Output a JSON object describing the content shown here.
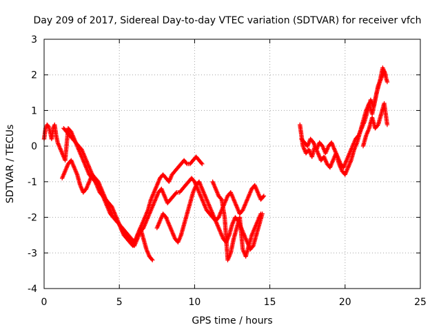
{
  "chart_data": {
    "type": "scatter",
    "title": "Day 209 of 2017, Sidereal Day-to-day VTEC variation (SDTVAR) for receiver vfch",
    "xlabel": "GPS time / hours",
    "ylabel": "SDTVAR / TECUs",
    "xlim": [
      0,
      25
    ],
    "ylim": [
      -4,
      3
    ],
    "xticks": [
      0,
      5,
      10,
      15,
      20,
      25
    ],
    "yticks": [
      -4,
      -3,
      -2,
      -1,
      0,
      1,
      2,
      3
    ],
    "grid": true,
    "grid_style": "dotted",
    "marker": "+",
    "colors": {
      "series": "#ff0000",
      "axes": "#000000",
      "grid": "#a0a0a0"
    },
    "series": [
      {
        "x": [
          0.0,
          0.1,
          0.2,
          0.3,
          0.4,
          0.5,
          0.6,
          0.7,
          0.8,
          0.9,
          1.0,
          1.2,
          1.4,
          1.6,
          1.8,
          2.0,
          2.2,
          2.4,
          2.6,
          2.8,
          3.0,
          3.2,
          3.4,
          3.6,
          3.8,
          4.0,
          4.2,
          4.4,
          4.6,
          4.8,
          5.0,
          5.2,
          5.4,
          5.6,
          5.8,
          6.0,
          6.2,
          6.4,
          6.6,
          6.8,
          7.0,
          7.2
        ],
        "y": [
          0.2,
          0.5,
          0.6,
          0.55,
          0.4,
          0.2,
          0.5,
          0.6,
          0.3,
          0.1,
          0.0,
          -0.2,
          -0.4,
          0.5,
          0.4,
          0.2,
          0.0,
          -0.2,
          -0.4,
          -0.6,
          -0.8,
          -0.9,
          -1.0,
          -1.1,
          -1.3,
          -1.5,
          -1.7,
          -1.9,
          -2.0,
          -2.1,
          -2.2,
          -2.3,
          -2.4,
          -2.5,
          -2.6,
          -2.7,
          -2.5,
          -2.3,
          -2.6,
          -2.9,
          -3.1,
          -3.2
        ]
      },
      {
        "x": [
          1.3,
          1.5,
          1.7,
          1.9,
          2.1,
          2.3,
          2.5,
          2.7,
          2.9,
          3.1,
          3.3,
          3.5,
          3.7,
          3.9,
          4.1,
          4.3,
          4.5,
          4.7,
          4.9,
          5.1,
          5.3,
          5.5,
          5.7,
          5.9,
          6.1,
          6.3,
          6.5,
          6.7,
          6.9,
          7.1,
          7.3,
          7.5,
          7.7,
          7.9,
          8.1,
          8.3,
          8.5,
          8.7,
          8.9,
          9.1,
          9.3,
          9.5,
          9.7,
          9.9,
          10.1,
          10.3,
          10.5
        ],
        "y": [
          0.5,
          0.4,
          0.3,
          0.2,
          0.1,
          0.0,
          -0.1,
          -0.3,
          -0.5,
          -0.7,
          -0.9,
          -1.1,
          -1.3,
          -1.4,
          -1.5,
          -1.6,
          -1.7,
          -1.9,
          -2.1,
          -2.3,
          -2.5,
          -2.6,
          -2.7,
          -2.8,
          -2.6,
          -2.4,
          -2.2,
          -2.0,
          -1.8,
          -1.5,
          -1.3,
          -1.1,
          -0.9,
          -0.8,
          -0.9,
          -1.0,
          -0.8,
          -0.7,
          -0.6,
          -0.5,
          -0.4,
          -0.5,
          -0.5,
          -0.4,
          -0.3,
          -0.4,
          -0.5
        ]
      },
      {
        "x": [
          1.2,
          1.4,
          1.6,
          1.8,
          2.0,
          2.2,
          2.4,
          2.6,
          2.8,
          3.0,
          3.2,
          3.4,
          3.6,
          3.8,
          4.0,
          4.2,
          4.4,
          4.6,
          4.8,
          5.0,
          5.2,
          5.4,
          5.6,
          5.8,
          6.0,
          6.2,
          6.4,
          6.6,
          6.8,
          7.0,
          7.2,
          7.4,
          7.6,
          7.8,
          8.0,
          8.2,
          8.4,
          8.6,
          8.8,
          9.0,
          9.2,
          9.4,
          9.6,
          9.8,
          10.0,
          10.2,
          10.4,
          10.6,
          10.8,
          11.0,
          11.2,
          11.4,
          11.6,
          11.8,
          12.0,
          12.2,
          12.4,
          12.6,
          12.8,
          13.0,
          13.2,
          13.4,
          13.6,
          13.8,
          14.0,
          14.2,
          14.4,
          14.6
        ],
        "y": [
          -0.9,
          -0.7,
          -0.5,
          -0.4,
          -0.6,
          -0.8,
          -1.1,
          -1.3,
          -1.2,
          -1.0,
          -0.8,
          -0.9,
          -1.0,
          -1.2,
          -1.4,
          -1.6,
          -1.8,
          -2.0,
          -2.1,
          -2.2,
          -2.4,
          -2.5,
          -2.6,
          -2.7,
          -2.8,
          -2.6,
          -2.4,
          -2.3,
          -2.1,
          -1.9,
          -1.7,
          -1.5,
          -1.3,
          -1.2,
          -1.4,
          -1.6,
          -1.5,
          -1.4,
          -1.3,
          -1.3,
          -1.2,
          -1.1,
          -1.0,
          -0.9,
          -1.0,
          -1.2,
          -1.4,
          -1.6,
          -1.8,
          -1.9,
          -2.0,
          -2.1,
          -2.0,
          -1.8,
          -1.6,
          -1.4,
          -1.3,
          -1.5,
          -1.7,
          -1.9,
          -1.8,
          -1.6,
          -1.4,
          -1.2,
          -1.1,
          -1.3,
          -1.5,
          -1.4
        ]
      },
      {
        "x": [
          7.5,
          7.7,
          7.9,
          8.1,
          8.3,
          8.5,
          8.7,
          8.9,
          9.1,
          9.3,
          9.5,
          9.7,
          9.9,
          10.1,
          10.3,
          10.5,
          10.7,
          10.9,
          11.1,
          11.3,
          11.5,
          11.7,
          11.9,
          12.1,
          12.3,
          12.5,
          12.7,
          12.9,
          13.1,
          13.3,
          13.5,
          13.7,
          13.9,
          14.1,
          14.3,
          14.5
        ],
        "y": [
          -2.3,
          -2.1,
          -1.9,
          -2.0,
          -2.2,
          -2.4,
          -2.6,
          -2.7,
          -2.5,
          -2.2,
          -1.9,
          -1.6,
          -1.3,
          -1.1,
          -1.0,
          -1.2,
          -1.4,
          -1.6,
          -1.8,
          -2.0,
          -2.2,
          -2.4,
          -2.6,
          -2.7,
          -2.5,
          -2.2,
          -2.0,
          -2.1,
          -2.3,
          -2.5,
          -2.7,
          -2.9,
          -2.8,
          -2.5,
          -2.2,
          -1.9
        ]
      },
      {
        "x": [
          11.2,
          11.4,
          11.6,
          11.8,
          12.0,
          12.2,
          12.4,
          12.6,
          12.8,
          13.0,
          13.2,
          13.4,
          13.6,
          13.8,
          14.0,
          14.2,
          14.4
        ],
        "y": [
          -1.0,
          -1.2,
          -1.4,
          -1.5,
          -2.0,
          -3.2,
          -3.0,
          -2.6,
          -2.3,
          -2.0,
          -2.9,
          -3.1,
          -2.8,
          -2.5,
          -2.3,
          -2.1,
          -1.9
        ]
      },
      {
        "x": [
          17.0,
          17.1,
          17.2,
          17.4,
          17.6,
          17.8,
          18.0,
          18.2,
          18.4,
          18.6,
          18.8,
          19.0,
          19.2,
          19.4,
          19.6,
          19.8,
          20.0,
          20.2,
          20.4,
          20.6,
          20.8,
          21.0,
          21.2,
          21.4,
          21.6,
          21.8,
          22.0,
          22.2,
          22.4,
          22.6,
          22.8
        ],
        "y": [
          0.6,
          0.3,
          0.0,
          -0.2,
          -0.1,
          -0.3,
          0.0,
          -0.2,
          -0.4,
          -0.3,
          -0.5,
          -0.6,
          -0.4,
          -0.2,
          -0.5,
          -0.7,
          -0.8,
          -0.6,
          -0.4,
          -0.1,
          0.1,
          0.4,
          0.7,
          1.0,
          1.2,
          0.9,
          1.3,
          1.7,
          1.9,
          2.1,
          1.8
        ]
      },
      {
        "x": [
          17.1,
          17.3,
          17.5,
          17.7,
          17.9,
          18.1,
          18.3,
          18.5,
          18.7,
          18.9,
          19.1,
          19.3,
          19.5,
          19.7,
          19.9,
          20.1,
          20.3,
          20.5,
          20.7,
          20.9,
          21.1,
          21.3,
          21.5,
          21.7,
          21.9,
          22.1,
          22.3,
          22.5,
          22.7
        ],
        "y": [
          0.2,
          0.1,
          0.0,
          0.2,
          0.1,
          -0.1,
          0.1,
          0.0,
          -0.2,
          0.0,
          0.1,
          -0.1,
          -0.3,
          -0.5,
          -0.6,
          -0.4,
          -0.2,
          0.0,
          0.2,
          0.3,
          0.5,
          0.7,
          1.0,
          1.3,
          1.1,
          1.5,
          1.8,
          2.2,
          2.0
        ]
      },
      {
        "x": [
          21.2,
          21.4,
          21.6,
          21.8,
          22.0,
          22.2,
          22.4,
          22.6,
          22.8
        ],
        "y": [
          0.0,
          0.3,
          0.5,
          0.8,
          0.5,
          0.6,
          0.9,
          1.2,
          0.6
        ]
      }
    ]
  }
}
